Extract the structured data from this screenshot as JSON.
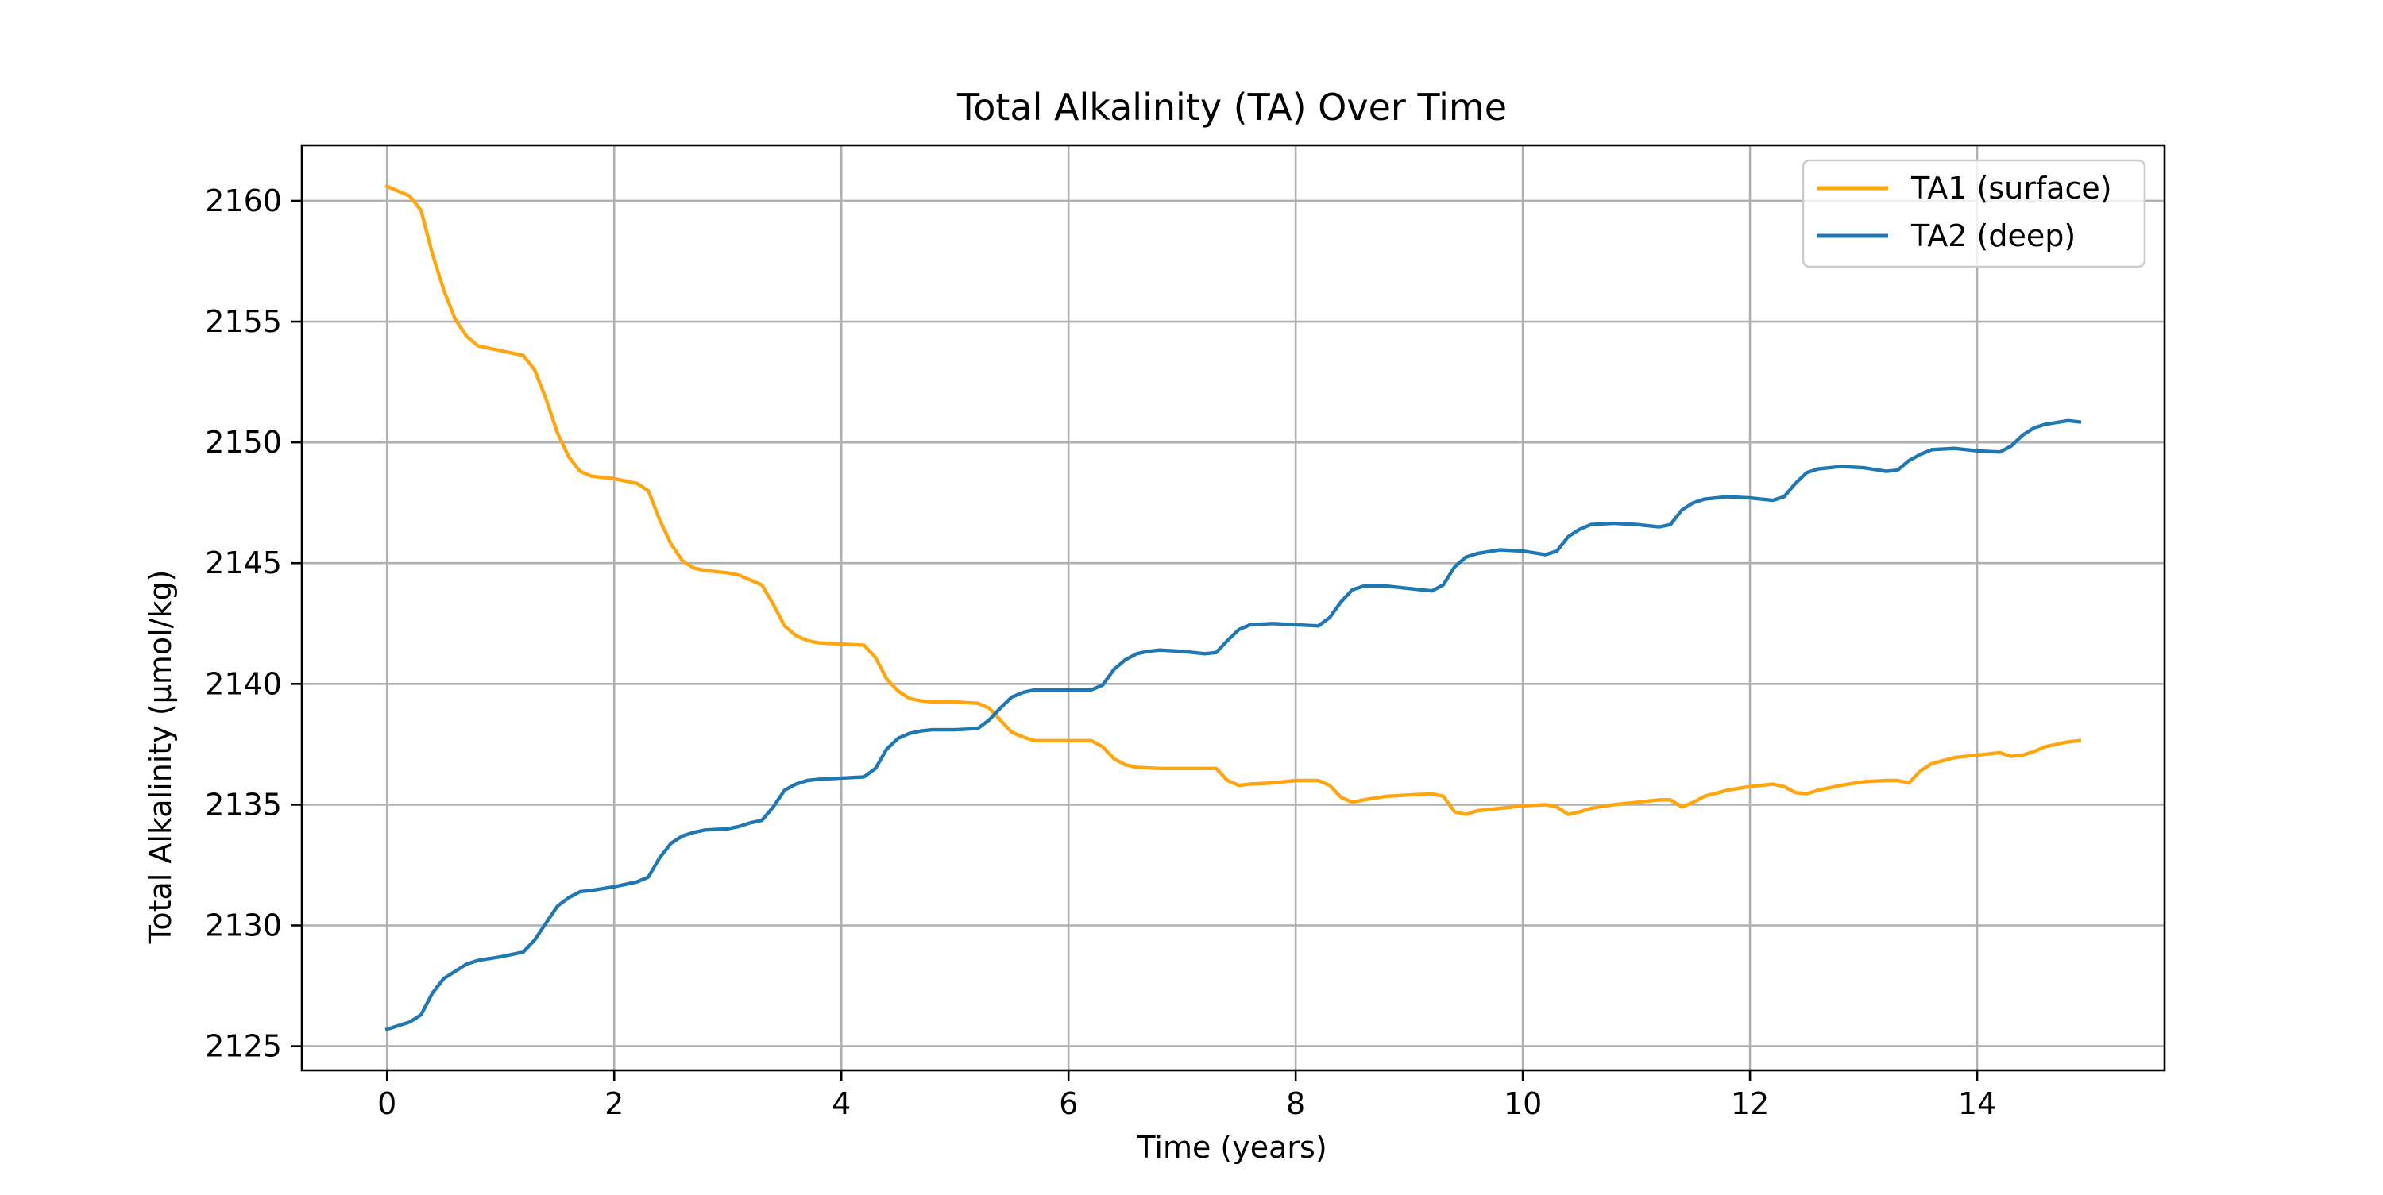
{
  "chart_data": {
    "type": "line",
    "title": "Total Alkalinity (TA) Over Time",
    "xlabel": "Time (years)",
    "ylabel": "Total Alkalinity (µmol/kg)",
    "xlim": [
      -0.75,
      15.65
    ],
    "ylim": [
      2124.0,
      2162.3
    ],
    "xticks": [
      0,
      2,
      4,
      6,
      8,
      10,
      12,
      14
    ],
    "yticks": [
      2125,
      2130,
      2135,
      2140,
      2145,
      2150,
      2155,
      2160
    ],
    "grid": true,
    "legend_position": "top-right",
    "series": [
      {
        "name": "TA1 (surface)",
        "color": "#ffa510",
        "x": [
          0,
          0.2,
          0.3,
          0.4,
          0.5,
          0.6,
          0.7,
          0.8,
          1.0,
          1.2,
          1.3,
          1.4,
          1.5,
          1.6,
          1.7,
          1.8,
          2.0,
          2.2,
          2.3,
          2.4,
          2.5,
          2.6,
          2.7,
          2.8,
          3.0,
          3.1,
          3.2,
          3.3,
          3.4,
          3.5,
          3.6,
          3.7,
          3.8,
          4.0,
          4.2,
          4.3,
          4.4,
          4.5,
          4.6,
          4.7,
          4.8,
          5.0,
          5.2,
          5.3,
          5.4,
          5.5,
          5.6,
          5.7,
          6.0,
          6.2,
          6.3,
          6.4,
          6.5,
          6.6,
          6.8,
          7.0,
          7.2,
          7.3,
          7.4,
          7.5,
          7.6,
          7.8,
          8.0,
          8.2,
          8.3,
          8.4,
          8.5,
          8.6,
          8.8,
          9.0,
          9.2,
          9.3,
          9.4,
          9.5,
          9.6,
          9.8,
          10.0,
          10.2,
          10.3,
          10.4,
          10.5,
          10.6,
          10.8,
          11.0,
          11.2,
          11.3,
          11.4,
          11.5,
          11.6,
          11.8,
          12.0,
          12.2,
          12.3,
          12.4,
          12.5,
          12.6,
          12.8,
          13.0,
          13.2,
          13.3,
          13.4,
          13.5,
          13.6,
          13.8,
          14.0,
          14.2,
          14.3,
          14.4,
          14.5,
          14.6,
          14.8,
          14.9
        ],
        "values": [
          2160.6,
          2160.2,
          2159.6,
          2157.8,
          2156.3,
          2155.1,
          2154.4,
          2154.0,
          2153.8,
          2153.6,
          2153.0,
          2151.8,
          2150.4,
          2149.4,
          2148.8,
          2148.6,
          2148.5,
          2148.3,
          2148.0,
          2146.8,
          2145.8,
          2145.1,
          2144.8,
          2144.7,
          2144.6,
          2144.5,
          2144.3,
          2144.1,
          2143.3,
          2142.4,
          2142.0,
          2141.8,
          2141.7,
          2141.65,
          2141.6,
          2141.1,
          2140.2,
          2139.7,
          2139.4,
          2139.3,
          2139.25,
          2139.25,
          2139.2,
          2139.0,
          2138.5,
          2138.0,
          2137.8,
          2137.65,
          2137.65,
          2137.65,
          2137.4,
          2136.9,
          2136.65,
          2136.55,
          2136.5,
          2136.5,
          2136.5,
          2136.5,
          2136.0,
          2135.8,
          2135.85,
          2135.9,
          2136.0,
          2136.0,
          2135.8,
          2135.3,
          2135.1,
          2135.2,
          2135.35,
          2135.4,
          2135.45,
          2135.35,
          2134.7,
          2134.6,
          2134.75,
          2134.85,
          2134.95,
          2135.0,
          2134.9,
          2134.6,
          2134.7,
          2134.85,
          2135.0,
          2135.1,
          2135.2,
          2135.2,
          2134.9,
          2135.1,
          2135.35,
          2135.6,
          2135.75,
          2135.85,
          2135.75,
          2135.5,
          2135.45,
          2135.6,
          2135.8,
          2135.95,
          2136.0,
          2136.0,
          2135.9,
          2136.4,
          2136.7,
          2136.95,
          2137.05,
          2137.15,
          2137.0,
          2137.05,
          2137.2,
          2137.4,
          2137.6,
          2137.65
        ]
      },
      {
        "name": "TA2 (deep)",
        "color": "#1f77b4",
        "x": [
          0,
          0.2,
          0.3,
          0.4,
          0.5,
          0.6,
          0.7,
          0.8,
          1.0,
          1.2,
          1.3,
          1.4,
          1.5,
          1.6,
          1.7,
          1.8,
          2.0,
          2.2,
          2.3,
          2.4,
          2.5,
          2.6,
          2.7,
          2.8,
          3.0,
          3.1,
          3.2,
          3.3,
          3.4,
          3.5,
          3.6,
          3.7,
          3.8,
          4.0,
          4.2,
          4.3,
          4.4,
          4.5,
          4.6,
          4.7,
          4.8,
          5.0,
          5.2,
          5.3,
          5.4,
          5.5,
          5.6,
          5.7,
          6.0,
          6.2,
          6.3,
          6.4,
          6.5,
          6.6,
          6.7,
          6.8,
          7.0,
          7.2,
          7.3,
          7.4,
          7.5,
          7.6,
          7.8,
          8.0,
          8.2,
          8.3,
          8.4,
          8.5,
          8.6,
          8.8,
          9.0,
          9.2,
          9.3,
          9.4,
          9.5,
          9.6,
          9.8,
          10.0,
          10.2,
          10.3,
          10.4,
          10.5,
          10.6,
          10.8,
          11.0,
          11.2,
          11.3,
          11.4,
          11.5,
          11.6,
          11.8,
          12.0,
          12.2,
          12.3,
          12.4,
          12.5,
          12.6,
          12.8,
          13.0,
          13.2,
          13.3,
          13.4,
          13.5,
          13.6,
          13.8,
          14.0,
          14.2,
          14.3,
          14.4,
          14.5,
          14.6,
          14.8,
          14.9
        ],
        "values": [
          2125.7,
          2126.0,
          2126.3,
          2127.2,
          2127.8,
          2128.1,
          2128.4,
          2128.55,
          2128.7,
          2128.9,
          2129.4,
          2130.1,
          2130.8,
          2131.15,
          2131.4,
          2131.45,
          2131.6,
          2131.8,
          2132.0,
          2132.8,
          2133.4,
          2133.7,
          2133.85,
          2133.95,
          2134.0,
          2134.1,
          2134.25,
          2134.35,
          2134.9,
          2135.6,
          2135.85,
          2136.0,
          2136.05,
          2136.1,
          2136.15,
          2136.5,
          2137.3,
          2137.75,
          2137.95,
          2138.05,
          2138.1,
          2138.1,
          2138.15,
          2138.5,
          2139.0,
          2139.45,
          2139.65,
          2139.75,
          2139.75,
          2139.75,
          2139.95,
          2140.6,
          2141.0,
          2141.25,
          2141.35,
          2141.4,
          2141.35,
          2141.25,
          2141.3,
          2141.8,
          2142.25,
          2142.45,
          2142.5,
          2142.45,
          2142.4,
          2142.75,
          2143.4,
          2143.9,
          2144.05,
          2144.05,
          2143.95,
          2143.85,
          2144.1,
          2144.85,
          2145.25,
          2145.4,
          2145.55,
          2145.5,
          2145.35,
          2145.5,
          2146.1,
          2146.4,
          2146.6,
          2146.65,
          2146.6,
          2146.5,
          2146.6,
          2147.2,
          2147.5,
          2147.65,
          2147.75,
          2147.7,
          2147.6,
          2147.75,
          2148.3,
          2148.75,
          2148.9,
          2149.0,
          2148.95,
          2148.8,
          2148.85,
          2149.25,
          2149.5,
          2149.7,
          2149.75,
          2149.65,
          2149.6,
          2149.85,
          2150.3,
          2150.6,
          2150.75,
          2150.9,
          2150.85
        ]
      }
    ]
  }
}
